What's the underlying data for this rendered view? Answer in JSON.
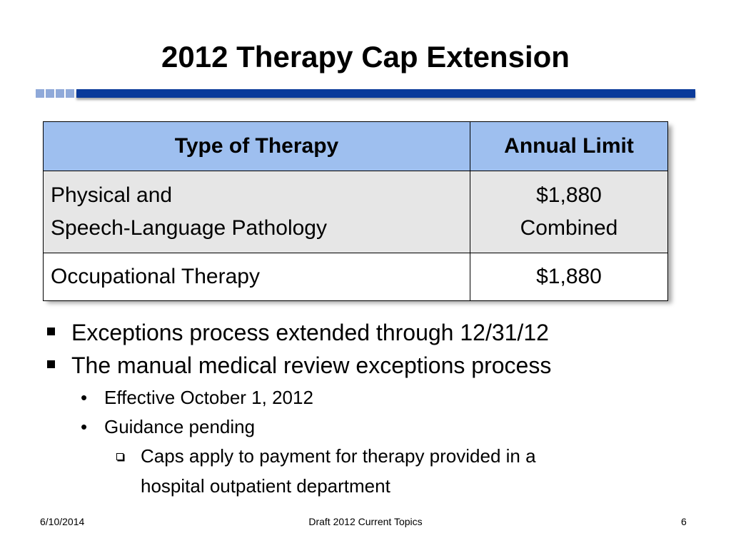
{
  "slide": {
    "title": "2012 Therapy Cap Extension",
    "table": {
      "headers": [
        "Type of Therapy",
        "Annual Limit"
      ],
      "rows": [
        {
          "type_lines": [
            "Physical and",
            "Speech-Language Pathology"
          ],
          "limit_lines": [
            "$1,880",
            "Combined"
          ]
        },
        {
          "type_lines": [
            "Occupational Therapy"
          ],
          "limit_lines": [
            "$1,880"
          ]
        }
      ]
    },
    "bullets": [
      "Exceptions process extended through 12/31/12",
      "The manual medical review exceptions process"
    ],
    "sub_bullets": [
      "Effective October 1, 2012",
      "Guidance pending"
    ],
    "sub_sub_bullet_lines": [
      "Caps apply to payment for therapy provided in a",
      "hospital outpatient department"
    ],
    "sub_bullet_glyph": "•"
  },
  "footer": {
    "date": "6/10/2014",
    "center": "Draft 2012 Current Topics",
    "page": "6"
  },
  "colors": {
    "header_fill": "#9ebfef",
    "row1_fill": "#e6e6e6",
    "rule_bar": "#0a3a9a",
    "rule_squares": "#8fa9d9"
  }
}
